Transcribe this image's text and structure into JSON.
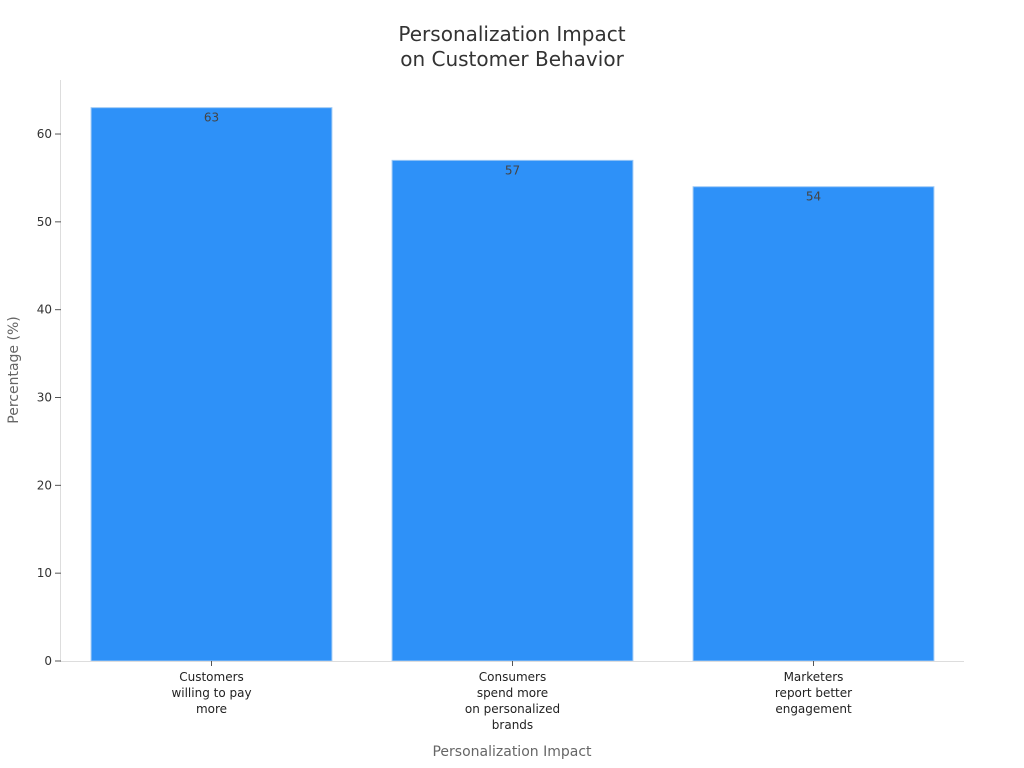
{
  "chart_data": {
    "type": "bar",
    "title": [
      "Personalization Impact",
      "on Customer Behavior"
    ],
    "xlabel": "Personalization Impact",
    "ylabel": "Percentage (%)",
    "categories": [
      [
        "Customers",
        "willing to pay",
        "more"
      ],
      [
        "Consumers",
        "spend more",
        "on personalized",
        "brands"
      ],
      [
        "Marketers",
        "report better",
        "engagement"
      ]
    ],
    "values": [
      63,
      57,
      54
    ],
    "data_labels": [
      "63",
      "57",
      "54"
    ],
    "ylim": [
      0,
      66.15
    ],
    "yticks": [
      0,
      10,
      20,
      30,
      40,
      50,
      60
    ],
    "grid": false,
    "bar_color": "#2e91f8",
    "bar_edge_color": "#9cc8f5"
  }
}
